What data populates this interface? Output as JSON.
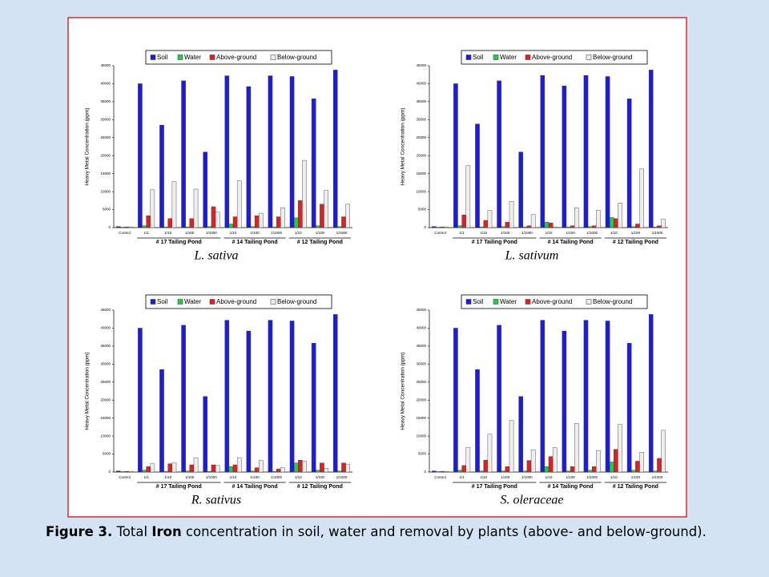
{
  "chart_data": [
    {
      "type": "bar",
      "subtitle": "L. sativa",
      "ylabel": "Heavy Metal Concentration (ppm)",
      "categories": [
        "Control",
        "1/1",
        "1/10",
        "1/100",
        "1/1000",
        "1/10",
        "1/100",
        "1/1000",
        "1/10",
        "1/100",
        "1/1000"
      ],
      "group_labels": [
        "# 17 Tailing Pond",
        "# 14 Tailing Pond",
        "# 12 Tailing Pond"
      ],
      "series": [
        {
          "name": "Soil",
          "color": "#1c1ce0",
          "values": [
            300,
            40000,
            28500,
            40800,
            21000,
            42200,
            39200,
            42200,
            42000,
            35800,
            43800
          ]
        },
        {
          "name": "Water",
          "color": "#22cc44",
          "values": [
            100,
            500,
            200,
            200,
            300,
            1000,
            300,
            200,
            2700,
            500,
            300
          ]
        },
        {
          "name": "Above-ground",
          "color": "#dd2222",
          "values": [
            200,
            3300,
            2500,
            2500,
            5800,
            3000,
            3300,
            3000,
            7500,
            6500,
            3000
          ]
        },
        {
          "name": "Below-ground",
          "color": "#eeeeee",
          "values": [
            200,
            10500,
            12800,
            10700,
            4300,
            13000,
            4000,
            5500,
            18700,
            10300,
            6500
          ]
        }
      ],
      "ylim": [
        0,
        45000
      ],
      "yticks": [
        0,
        5000,
        10000,
        15000,
        20000,
        25000,
        30000,
        35000,
        40000,
        45000
      ],
      "grid": false
    },
    {
      "type": "bar",
      "subtitle": "L. sativum",
      "ylabel": "Heavy Metal Concentration (ppm)",
      "categories": [
        "Control",
        "1/1",
        "1/10",
        "1/100",
        "1/1000",
        "1/10",
        "1/100",
        "1/1000",
        "1/10",
        "1/100",
        "1/1000"
      ],
      "group_labels": [
        "# 17 Tailing Pond",
        "# 14 Tailing Pond",
        "# 12 Tailing Pond"
      ],
      "series": [
        {
          "name": "Soil",
          "color": "#1c1ce0",
          "values": [
            300,
            40000,
            28800,
            40800,
            21000,
            42300,
            39400,
            42300,
            42000,
            35800,
            43800
          ]
        },
        {
          "name": "Water",
          "color": "#22cc44",
          "values": [
            100,
            500,
            200,
            300,
            200,
            1500,
            200,
            300,
            2800,
            300,
            200
          ]
        },
        {
          "name": "Above-ground",
          "color": "#dd2222",
          "values": [
            200,
            3500,
            2000,
            1500,
            500,
            1300,
            500,
            500,
            2500,
            1000,
            500
          ]
        },
        {
          "name": "Below-ground",
          "color": "#eeeeee",
          "values": [
            200,
            17200,
            4800,
            7300,
            3600,
            200,
            5500,
            4800,
            6800,
            16300,
            2300
          ]
        }
      ],
      "ylim": [
        0,
        45000
      ],
      "yticks": [
        0,
        5000,
        10000,
        15000,
        20000,
        25000,
        30000,
        35000,
        40000,
        45000
      ],
      "grid": false
    },
    {
      "type": "bar",
      "subtitle": "R. sativus",
      "ylabel": "Heavy Metal Concentration (ppm)",
      "categories": [
        "Control",
        "1/1",
        "1/10",
        "1/100",
        "1/1000",
        "1/10",
        "1/100",
        "1/1000",
        "1/10",
        "1/100",
        "1/1000"
      ],
      "group_labels": [
        "# 17 Tailing Pond",
        "# 14 Tailing Pond",
        "# 12 Tailing Pond"
      ],
      "series": [
        {
          "name": "Soil",
          "color": "#1c1ce0",
          "values": [
            300,
            40000,
            28500,
            40800,
            21000,
            42200,
            39200,
            42200,
            42000,
            35800,
            43800
          ]
        },
        {
          "name": "Water",
          "color": "#22cc44",
          "values": [
            100,
            500,
            200,
            300,
            200,
            1500,
            300,
            200,
            2500,
            500,
            300
          ]
        },
        {
          "name": "Above-ground",
          "color": "#dd2222",
          "values": [
            200,
            1500,
            2300,
            2000,
            2000,
            2000,
            1200,
            800,
            3300,
            2500,
            2500
          ]
        },
        {
          "name": "Below-ground",
          "color": "#eeeeee",
          "values": [
            200,
            2300,
            2500,
            4000,
            1800,
            4000,
            3200,
            1200,
            3000,
            1000,
            2200
          ]
        }
      ],
      "ylim": [
        0,
        45000
      ],
      "yticks": [
        0,
        5000,
        10000,
        15000,
        20000,
        25000,
        30000,
        35000,
        40000,
        45000
      ],
      "grid": false
    },
    {
      "type": "bar",
      "subtitle": "S. oleraceae",
      "ylabel": "Heavy Metal Concentration (ppm)",
      "categories": [
        "Control",
        "1/1",
        "1/10",
        "1/100",
        "1/1000",
        "1/10",
        "1/100",
        "1/1000",
        "1/10",
        "1/100",
        "1/1000"
      ],
      "group_labels": [
        "# 17 Tailing Pond",
        "# 14 Tailing Pond",
        "# 12 Tailing Pond"
      ],
      "series": [
        {
          "name": "Soil",
          "color": "#1c1ce0",
          "values": [
            300,
            40000,
            28500,
            40800,
            21000,
            42200,
            39200,
            42200,
            42000,
            35800,
            43800
          ]
        },
        {
          "name": "Water",
          "color": "#22cc44",
          "values": [
            100,
            500,
            300,
            300,
            300,
            1500,
            300,
            500,
            2800,
            500,
            300
          ]
        },
        {
          "name": "Above-ground",
          "color": "#dd2222",
          "values": [
            200,
            1800,
            3300,
            1500,
            3200,
            4300,
            1500,
            1500,
            6300,
            3000,
            3800
          ]
        },
        {
          "name": "Below-ground",
          "color": "#eeeeee",
          "values": [
            200,
            6800,
            10500,
            14300,
            6200,
            6800,
            13500,
            6000,
            13200,
            5500,
            11600
          ]
        }
      ],
      "ylim": [
        0,
        45000
      ],
      "yticks": [
        0,
        5000,
        10000,
        15000,
        20000,
        25000,
        30000,
        35000,
        40000,
        45000
      ],
      "grid": false
    }
  ],
  "caption": {
    "label": "Figure 3.",
    "before": "Total",
    "emphasis": "Iron",
    "after": "concentration in soil, water and removal by plants (above- and below-ground)."
  }
}
